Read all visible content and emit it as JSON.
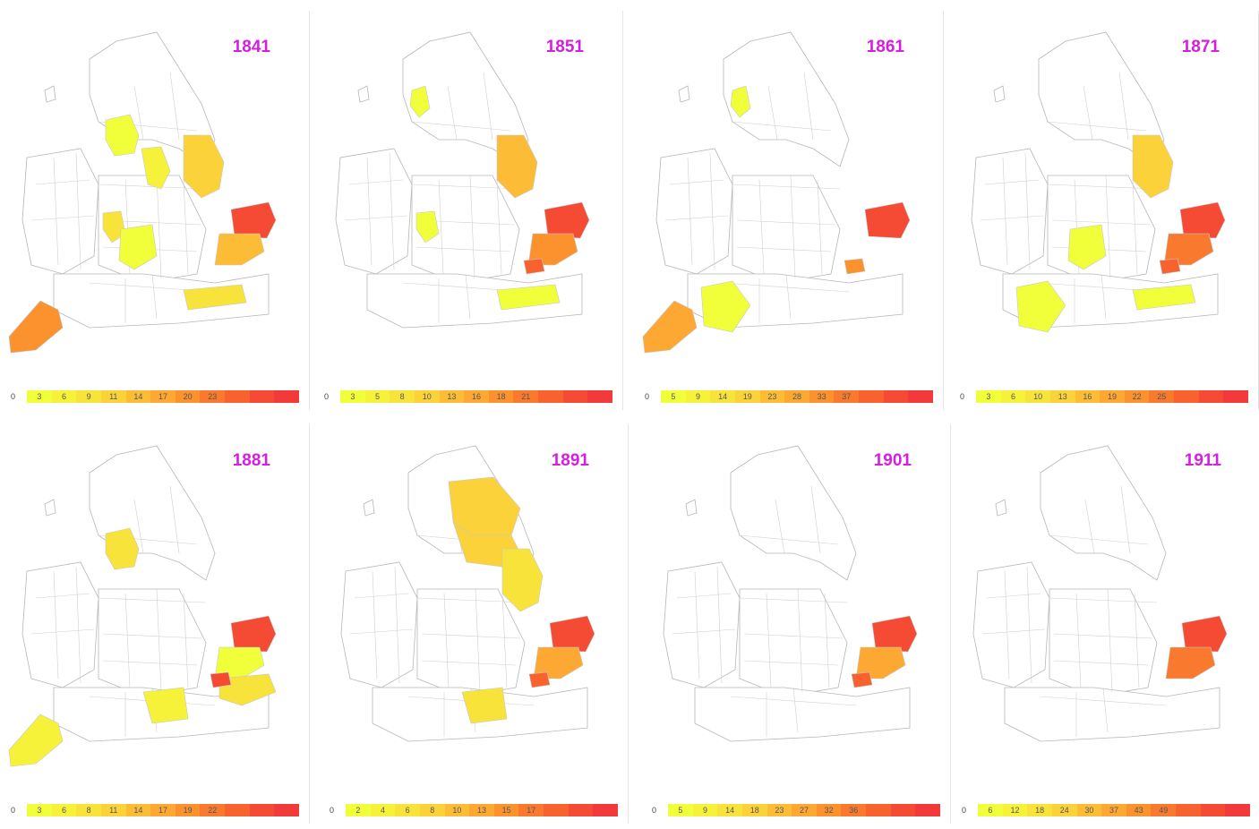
{
  "colors": {
    "year_label": "#d61ee0",
    "border": "#b7b7b7",
    "empty": "#ffffff",
    "scale": [
      "#f0ff3a",
      "#f6f23a",
      "#f8e33a",
      "#fbd23a",
      "#fcbc36",
      "#fca832",
      "#fb922e",
      "#f97a2e",
      "#f7622f",
      "#f54a34",
      "#f33a3a"
    ]
  },
  "panels": [
    {
      "year": "1841",
      "legend": {
        "zero": "0",
        "ticks": [
          "3",
          "6",
          "9",
          "11",
          "14",
          "17",
          "20",
          "23",
          "",
          "",
          ""
        ]
      },
      "regions": {
        "cumbria": 0,
        "lancs": 1,
        "yorks_n": 0,
        "yorks_e": 0,
        "lincs": 4,
        "derby": 2,
        "stafford": 0,
        "hereford": 3,
        "warwick": 1,
        "norfolk": 0,
        "suffolk": 10,
        "essex": 5,
        "kent": 0,
        "sussex": 3,
        "surrey": 0,
        "hants": 0,
        "devon": 0,
        "cornwall": 7,
        "london": 0
      }
    },
    {
      "year": "1851",
      "legend": {
        "zero": "0",
        "ticks": [
          "3",
          "5",
          "8",
          "10",
          "13",
          "16",
          "18",
          "21",
          "",
          "",
          ""
        ]
      },
      "regions": {
        "cumbria": 1,
        "lancs": 0,
        "yorks_n": 0,
        "yorks_e": 0,
        "lincs": 5,
        "derby": 0,
        "stafford": 0,
        "hereford": 1,
        "warwick": 0,
        "norfolk": 0,
        "suffolk": 10,
        "essex": 7,
        "kent": 0,
        "sussex": 1,
        "surrey": 0,
        "hants": 0,
        "devon": 0,
        "cornwall": 0,
        "london": 9
      }
    },
    {
      "year": "1861",
      "legend": {
        "zero": "0",
        "ticks": [
          "5",
          "9",
          "14",
          "19",
          "23",
          "28",
          "33",
          "37",
          "",
          "",
          ""
        ]
      },
      "regions": {
        "cumbria": 1,
        "lancs": 0,
        "yorks_n": 0,
        "yorks_e": 0,
        "lincs": 0,
        "derby": 0,
        "stafford": 0,
        "hereford": 0,
        "warwick": 0,
        "norfolk": 0,
        "suffolk": 10,
        "essex": 0,
        "kent": 0,
        "sussex": 0,
        "surrey": 0,
        "hants": 0,
        "devon": 1,
        "cornwall": 6,
        "london": 7
      }
    },
    {
      "year": "1871",
      "legend": {
        "zero": "0",
        "ticks": [
          "3",
          "6",
          "10",
          "13",
          "16",
          "19",
          "22",
          "25",
          "",
          "",
          ""
        ]
      },
      "regions": {
        "cumbria": 0,
        "lancs": 0,
        "yorks_n": 0,
        "yorks_e": 0,
        "lincs": 4,
        "derby": 0,
        "stafford": 0,
        "hereford": 0,
        "warwick": 1,
        "norfolk": 0,
        "suffolk": 10,
        "essex": 8,
        "kent": 0,
        "sussex": 1,
        "surrey": 0,
        "hants": 0,
        "devon": 1,
        "cornwall": 0,
        "london": 9
      }
    },
    {
      "year": "1881",
      "legend": {
        "zero": "0",
        "ticks": [
          "3",
          "6",
          "8",
          "11",
          "14",
          "17",
          "19",
          "22",
          "",
          "",
          ""
        ]
      },
      "regions": {
        "cumbria": 0,
        "lancs": 3,
        "yorks_n": 0,
        "yorks_e": 0,
        "lincs": 0,
        "derby": 0,
        "stafford": 0,
        "hereford": 0,
        "warwick": 0,
        "norfolk": 0,
        "suffolk": 10,
        "essex": 1,
        "kent": 3,
        "sussex": 0,
        "surrey": 0,
        "hants": 2,
        "devon": 0,
        "cornwall": 2,
        "london": 10
      }
    },
    {
      "year": "1891",
      "legend": {
        "zero": "0",
        "ticks": [
          "2",
          "4",
          "6",
          "8",
          "10",
          "13",
          "15",
          "17",
          "",
          "",
          ""
        ]
      },
      "regions": {
        "cumbria": 0,
        "lancs": 0,
        "yorks_n": 4,
        "yorks_e": 4,
        "lincs": 3,
        "derby": 0,
        "stafford": 0,
        "hereford": 0,
        "warwick": 0,
        "norfolk": 0,
        "suffolk": 10,
        "essex": 6,
        "kent": 0,
        "sussex": 0,
        "surrey": 0,
        "hants": 3,
        "devon": 0,
        "cornwall": 0,
        "london": 9
      }
    },
    {
      "year": "1901",
      "legend": {
        "zero": "0",
        "ticks": [
          "5",
          "9",
          "14",
          "18",
          "23",
          "27",
          "32",
          "36",
          "",
          "",
          ""
        ]
      },
      "regions": {
        "cumbria": 0,
        "lancs": 0,
        "yorks_n": 0,
        "yorks_e": 0,
        "lincs": 0,
        "derby": 0,
        "stafford": 0,
        "hereford": 0,
        "warwick": 0,
        "norfolk": 0,
        "suffolk": 10,
        "essex": 6,
        "kent": 0,
        "sussex": 0,
        "surrey": 0,
        "hants": 0,
        "devon": 0,
        "cornwall": 0,
        "london": 9
      }
    },
    {
      "year": "1911",
      "legend": {
        "zero": "0",
        "ticks": [
          "6",
          "12",
          "18",
          "24",
          "30",
          "37",
          "43",
          "49",
          "",
          "",
          ""
        ]
      },
      "regions": {
        "cumbria": 0,
        "lancs": 0,
        "yorks_n": 0,
        "yorks_e": 0,
        "lincs": 0,
        "derby": 0,
        "stafford": 0,
        "hereford": 0,
        "warwick": 0,
        "norfolk": 0,
        "suffolk": 10,
        "essex": 8,
        "kent": 0,
        "sussex": 0,
        "surrey": 0,
        "hants": 0,
        "devon": 0,
        "cornwall": 0,
        "london": 0
      }
    }
  ]
}
